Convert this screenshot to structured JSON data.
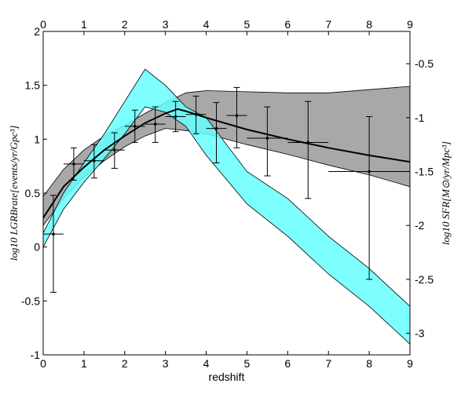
{
  "chart_data": {
    "type": "line",
    "xlabel": "redshift",
    "ylabel_left": "log10 LGRBrate[events/yr/Gpc³]",
    "ylabel_right": "log10 SFR[M⊙/yr/Mpc³]",
    "xlim": [
      0,
      9
    ],
    "ylim_left": [
      -1,
      2
    ],
    "ylim_right": [
      -3.2,
      -0.2
    ],
    "x_ticks": [
      "0",
      "1",
      "2",
      "3",
      "4",
      "5",
      "6",
      "7",
      "8",
      "9"
    ],
    "y_left_ticks": [
      "-1",
      "-0.5",
      "0",
      "0.5",
      "1",
      "1.5",
      "2"
    ],
    "y_right_ticks": [
      "-3",
      "-2.5",
      "-2",
      "-1.5",
      "-1",
      "-0.5"
    ],
    "grid": false,
    "series": [
      {
        "kind": "band",
        "axis": "left",
        "color": "#999999",
        "x": [
          0,
          0.5,
          1,
          1.5,
          2,
          2.5,
          3,
          3.5,
          4,
          5,
          6,
          7,
          8,
          9
        ],
        "lower": [
          0.2,
          0.45,
          0.65,
          0.8,
          0.93,
          1.03,
          1.1,
          1.08,
          1.05,
          0.95,
          0.86,
          0.76,
          0.67,
          0.56
        ],
        "upper": [
          0.47,
          0.72,
          0.9,
          1.03,
          1.13,
          1.24,
          1.34,
          1.43,
          1.45,
          1.44,
          1.43,
          1.43,
          1.46,
          1.49
        ]
      },
      {
        "kind": "band",
        "axis": "left",
        "color": "#66ffff",
        "x": [
          0,
          0.5,
          1,
          1.5,
          2,
          2.5,
          3,
          3.5,
          4,
          5,
          6,
          7,
          8,
          9
        ],
        "lower": [
          0.0,
          0.35,
          0.6,
          0.82,
          1.05,
          1.3,
          1.25,
          1.12,
          0.85,
          0.4,
          0.1,
          -0.25,
          -0.55,
          -0.9
        ],
        "upper": [
          0.13,
          0.5,
          0.78,
          1.05,
          1.35,
          1.65,
          1.5,
          1.3,
          1.2,
          0.7,
          0.45,
          0.1,
          -0.2,
          -0.55
        ]
      },
      {
        "kind": "line",
        "axis": "left",
        "color": "#000000",
        "x": [
          0,
          0.5,
          1,
          1.5,
          2,
          2.5,
          3,
          3.3,
          3.5,
          4,
          5,
          6,
          7,
          8,
          9
        ],
        "y": [
          0.27,
          0.56,
          0.74,
          0.9,
          1.03,
          1.15,
          1.24,
          1.28,
          1.26,
          1.2,
          1.09,
          1.0,
          0.92,
          0.85,
          0.79
        ]
      },
      {
        "kind": "points",
        "axis": "left",
        "color": "#000000",
        "points": [
          {
            "x": 0.25,
            "y": 0.12,
            "xlo": 0.0,
            "xhi": 0.5,
            "ylo": -0.42,
            "yhi": 0.48
          },
          {
            "x": 0.75,
            "y": 0.77,
            "xlo": 0.5,
            "xhi": 1.0,
            "ylo": 0.62,
            "yhi": 0.92
          },
          {
            "x": 1.25,
            "y": 0.8,
            "xlo": 1.0,
            "xhi": 1.5,
            "ylo": 0.64,
            "yhi": 0.95
          },
          {
            "x": 1.75,
            "y": 0.9,
            "xlo": 1.5,
            "xhi": 2.0,
            "ylo": 0.73,
            "yhi": 1.06
          },
          {
            "x": 2.25,
            "y": 1.12,
            "xlo": 2.0,
            "xhi": 2.5,
            "ylo": 0.97,
            "yhi": 1.27
          },
          {
            "x": 2.75,
            "y": 1.14,
            "xlo": 2.5,
            "xhi": 3.0,
            "ylo": 0.97,
            "yhi": 1.3
          },
          {
            "x": 3.25,
            "y": 1.21,
            "xlo": 3.0,
            "xhi": 3.5,
            "ylo": 1.07,
            "yhi": 1.35
          },
          {
            "x": 3.75,
            "y": 1.23,
            "xlo": 3.5,
            "xhi": 4.0,
            "ylo": 1.05,
            "yhi": 1.4
          },
          {
            "x": 4.25,
            "y": 1.1,
            "xlo": 4.0,
            "xhi": 4.5,
            "ylo": 0.78,
            "yhi": 1.34
          },
          {
            "x": 4.75,
            "y": 1.22,
            "xlo": 4.5,
            "xhi": 5.0,
            "ylo": 0.92,
            "yhi": 1.48
          },
          {
            "x": 5.5,
            "y": 1.01,
            "xlo": 5.0,
            "xhi": 6.0,
            "ylo": 0.66,
            "yhi": 1.3
          },
          {
            "x": 6.5,
            "y": 0.97,
            "xlo": 6.0,
            "xhi": 7.0,
            "ylo": 0.45,
            "yhi": 1.35
          },
          {
            "x": 8.0,
            "y": 0.7,
            "xlo": 7.0,
            "xhi": 9.0,
            "ylo": -0.3,
            "yhi": 1.21
          }
        ]
      }
    ]
  }
}
